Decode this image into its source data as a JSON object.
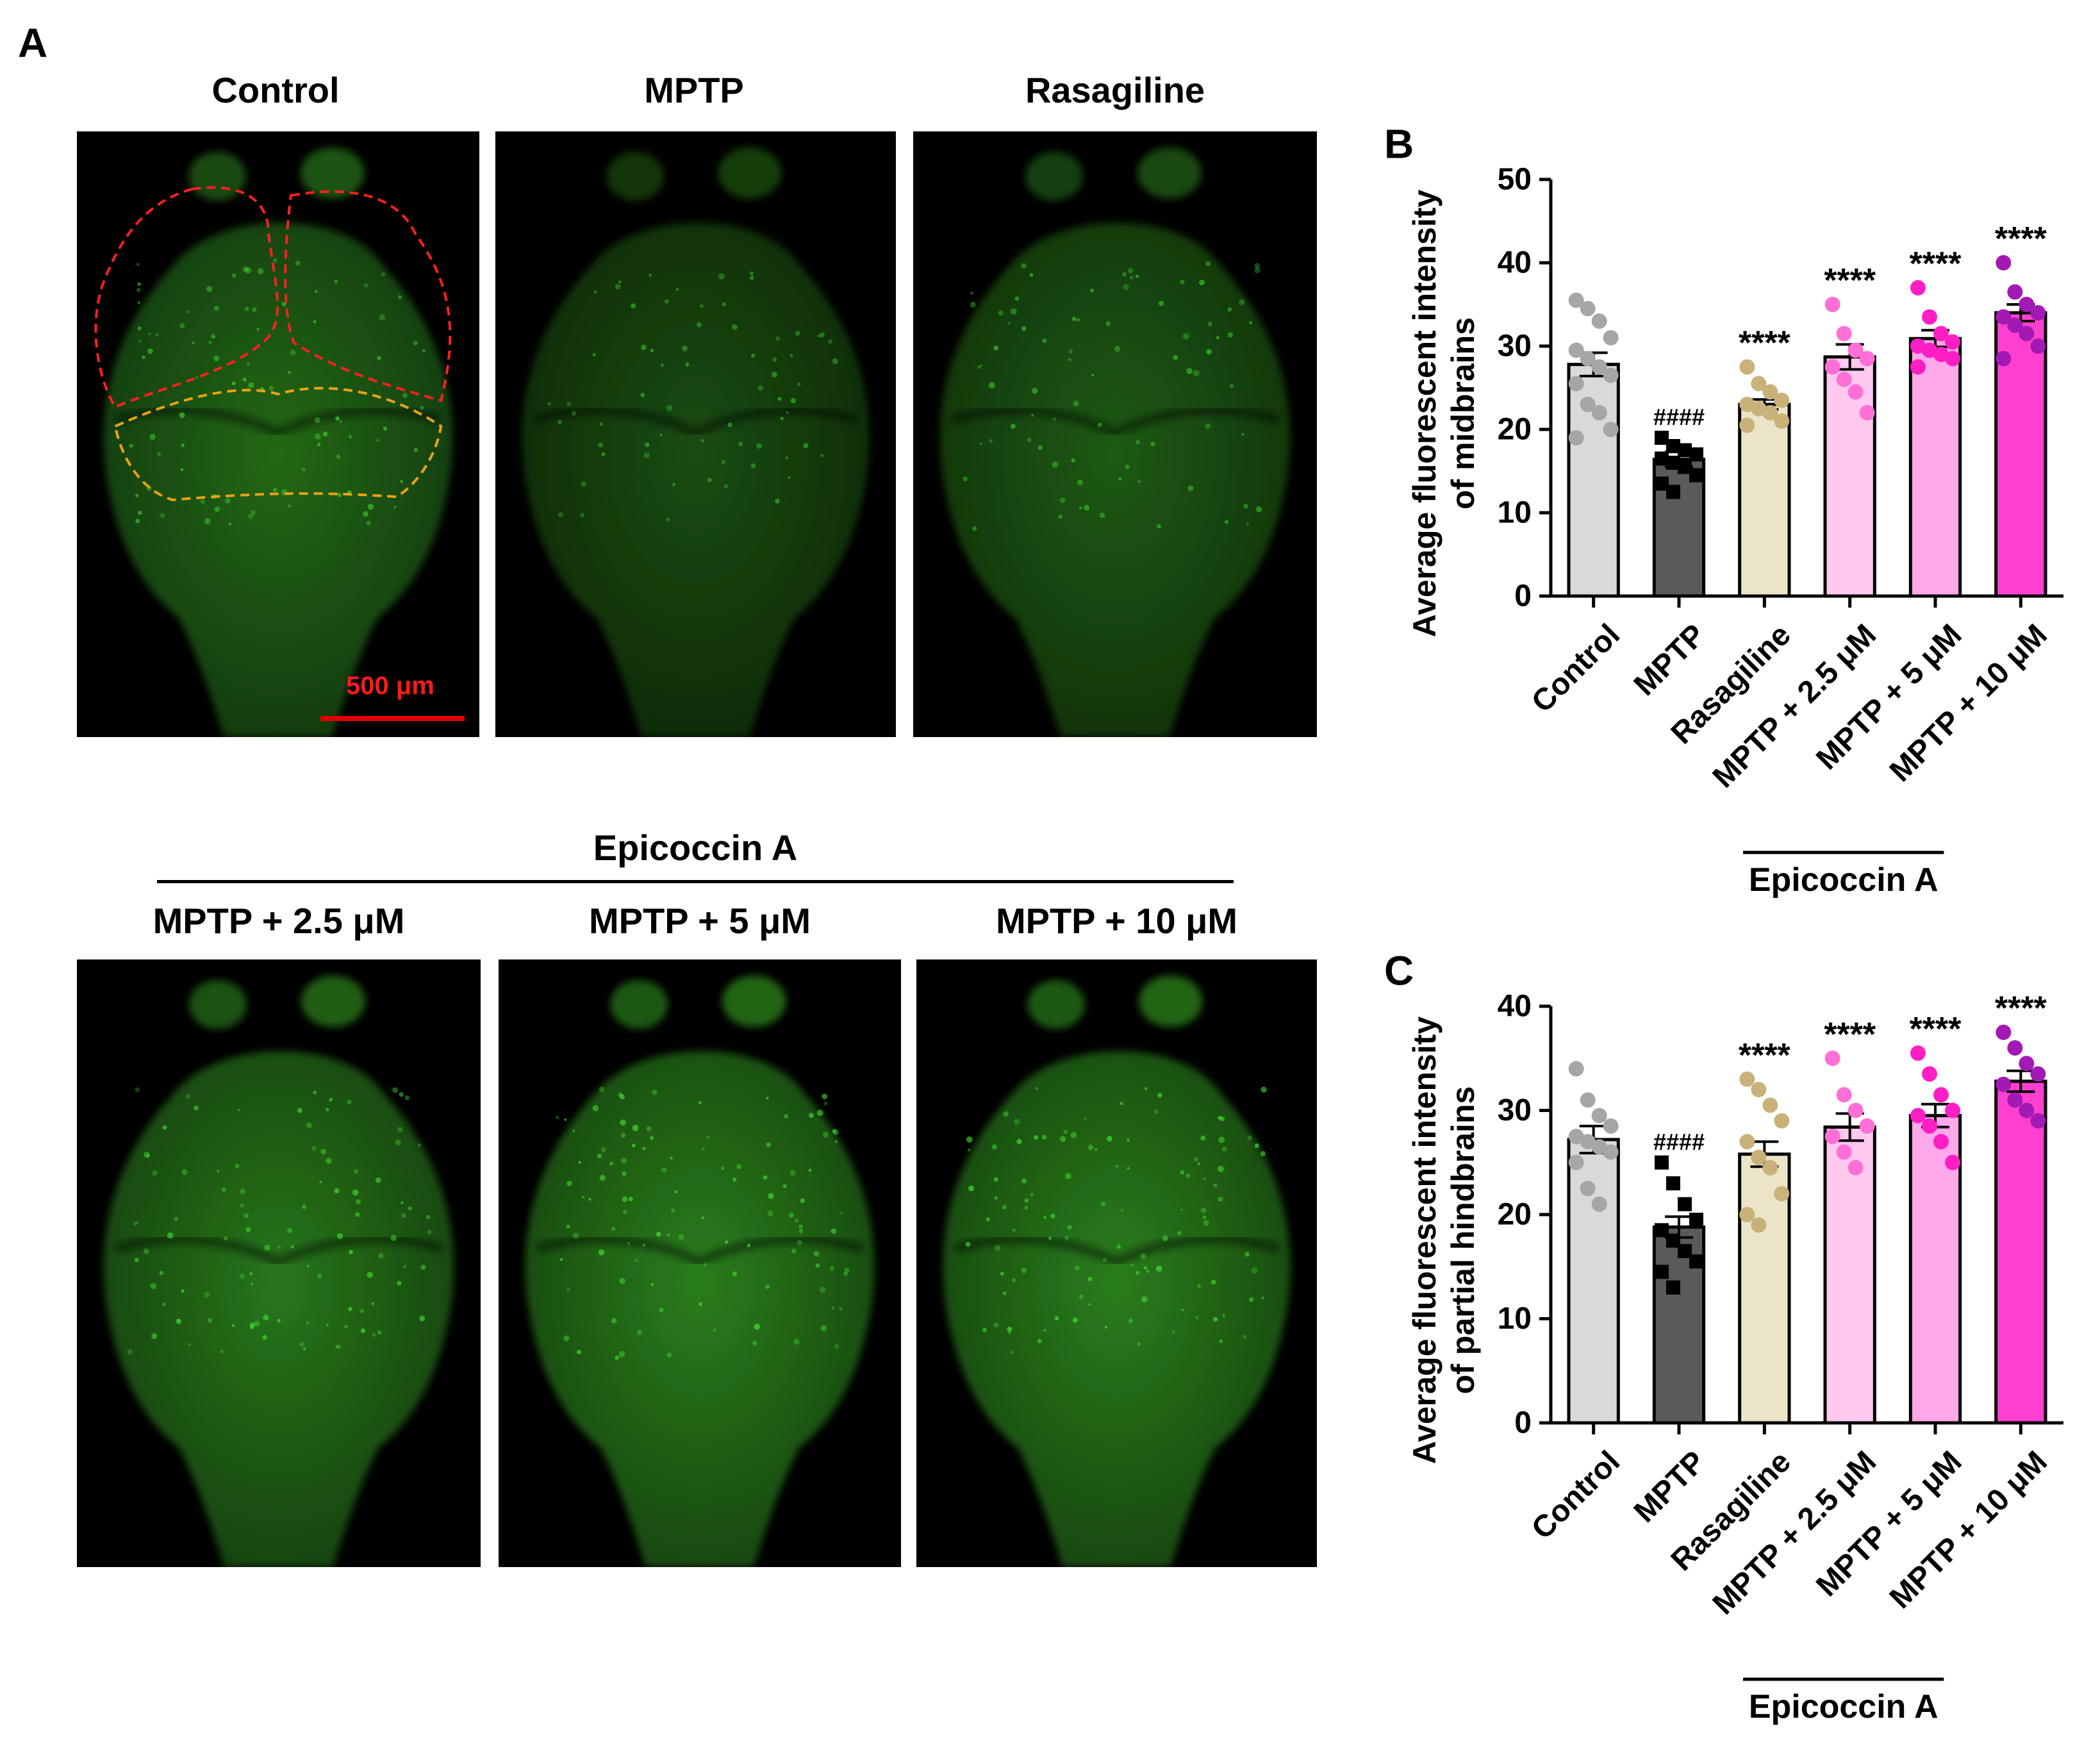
{
  "panel_a": {
    "label": "A",
    "top_titles": [
      "Control",
      "MPTP",
      "Rasagiline"
    ],
    "group_title": "Epicoccin A",
    "bottom_titles": [
      "MPTP + 2.5 μM",
      "MPTP + 5 μM",
      "MPTP + 10 μM"
    ],
    "scale_bar_label": "500 μm",
    "colors": {
      "fluorescence": "#2e8b1e",
      "midbrain_outline": "#ff2020",
      "hindbrain_outline": "#e8a317",
      "scale_bar": "#e00000"
    },
    "intensity": [
      0.75,
      0.55,
      0.65,
      0.85,
      0.9,
      0.9
    ]
  },
  "chart_data": [
    {
      "panel_label": "B",
      "type": "bar",
      "categories": [
        "Control",
        "MPTP",
        "Rasagiline",
        "MPTP + 2.5 μM",
        "MPTP + 5 μM",
        "MPTP + 10 μM"
      ],
      "values": [
        27.8,
        16.4,
        23.0,
        28.7,
        30.9,
        34.0
      ],
      "sem": [
        1.4,
        0.9,
        0.6,
        1.5,
        1.0,
        1.0
      ],
      "points": [
        [
          35.5,
          34.5,
          33,
          31,
          29.5,
          28.5,
          27.5,
          26.5,
          25.5,
          23,
          22,
          20,
          19
        ],
        [
          19,
          18,
          17.5,
          17,
          16.5,
          16,
          15.5,
          14.5,
          13.5,
          12.5
        ],
        [
          27.5,
          25.5,
          24.5,
          23.5,
          23,
          22.5,
          22,
          21,
          20.5
        ],
        [
          35,
          31.5,
          29.5,
          28.5,
          27.5,
          26,
          24.5,
          22
        ],
        [
          37,
          33.5,
          31.5,
          30.5,
          30,
          29.5,
          29,
          28.5,
          27.5
        ],
        [
          40,
          36.5,
          35,
          34,
          33.5,
          32.5,
          31.5,
          30,
          28.5
        ]
      ],
      "annotations": [
        "",
        "####",
        "****",
        "****",
        "****",
        "****"
      ],
      "bar_colors": [
        "#d9d9d9",
        "#5a5a5a",
        "#ece4c8",
        "#ffc8ef",
        "#ffa8ea",
        "#ff3fd0"
      ],
      "point_colors": [
        "#a6a6a6",
        "#000000",
        "#c9b27a",
        "#ff6fd6",
        "#ff1ec4",
        "#a21ab3"
      ],
      "point_shapes": [
        "circle",
        "square",
        "circle",
        "circle",
        "circle",
        "circle"
      ],
      "ylabel": [
        "Average fluorescent intensity",
        "of midbrains"
      ],
      "ylim": [
        0,
        50
      ],
      "yticks": [
        "0",
        "10",
        "20",
        "30",
        "40",
        "50"
      ],
      "group_label": "Epicoccin A",
      "grid": false
    },
    {
      "panel_label": "C",
      "type": "bar",
      "categories": [
        "Control",
        "MPTP",
        "Rasagiline",
        "MPTP + 2.5 μM",
        "MPTP + 5 μM",
        "MPTP + 10 μM"
      ],
      "values": [
        27.2,
        18.8,
        25.8,
        28.4,
        29.5,
        32.8
      ],
      "sem": [
        1.3,
        1.0,
        1.2,
        1.3,
        1.1,
        1.0
      ],
      "points": [
        [
          34,
          31,
          29.5,
          28.5,
          27.5,
          27,
          26.5,
          26,
          25,
          22.5,
          21
        ],
        [
          25,
          23,
          21,
          19.5,
          18.5,
          17.5,
          16.5,
          15.5,
          14.5,
          13
        ],
        [
          33,
          32,
          30.5,
          29,
          27,
          25.5,
          24.5,
          22,
          20,
          19
        ],
        [
          35,
          31.5,
          30,
          28.5,
          27.5,
          26,
          24.5
        ],
        [
          35.5,
          33.5,
          31.5,
          30,
          29.5,
          28.5,
          27,
          25
        ],
        [
          37.5,
          36,
          34.5,
          33.5,
          32.5,
          31,
          30,
          29
        ]
      ],
      "annotations": [
        "",
        "####",
        "****",
        "****",
        "****",
        "****"
      ],
      "bar_colors": [
        "#d9d9d9",
        "#5a5a5a",
        "#ece4c8",
        "#ffc8ef",
        "#ffa8ea",
        "#ff3fd0"
      ],
      "point_colors": [
        "#a6a6a6",
        "#000000",
        "#c9b27a",
        "#ff6fd6",
        "#ff1ec4",
        "#a21ab3"
      ],
      "point_shapes": [
        "circle",
        "square",
        "circle",
        "circle",
        "circle",
        "circle"
      ],
      "ylabel": [
        "Average fluorescent intensity",
        "of partial hindbrains"
      ],
      "ylim": [
        0,
        40
      ],
      "yticks": [
        "0",
        "10",
        "20",
        "30",
        "40"
      ],
      "group_label": "Epicoccin A",
      "grid": false
    }
  ]
}
